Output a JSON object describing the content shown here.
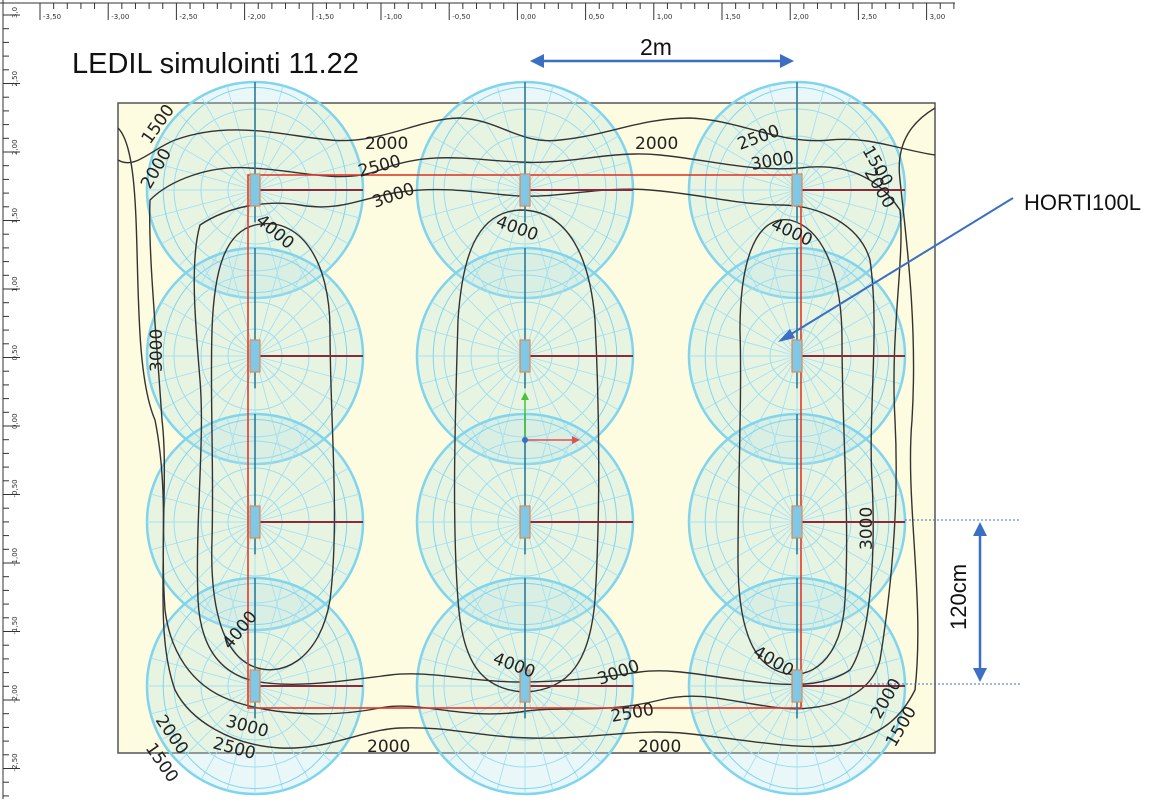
{
  "title": "LEDIL simulointi 11.22",
  "annotations": {
    "fixture_label": "HORTI100L",
    "spacing_horizontal": "2m",
    "spacing_vertical": "120cm"
  },
  "ruler": {
    "top_ticks": [
      "-3,50",
      "-3,00",
      "-2,50",
      "-2,00",
      "-1,50",
      "-1,00",
      "-0,50",
      "0,00",
      "0,50",
      "1,00",
      "1,50",
      "2,00",
      "2,50",
      "3,00"
    ],
    "left_ticks": [
      "3,0",
      "2,50",
      "2,00",
      "1,50",
      "1,00",
      "0,50",
      "0,00",
      "-0,50",
      "-1,00",
      "-1,50",
      "-2,00",
      "-2,50"
    ]
  },
  "contours": {
    "levels": [
      "1500",
      "2000",
      "2500",
      "3000",
      "4000"
    ],
    "labels": [
      {
        "text": "1500",
        "id": "c-tl-1500"
      },
      {
        "text": "2000",
        "id": "c-tl-2000"
      },
      {
        "text": "2000",
        "id": "c-top-2000a"
      },
      {
        "text": "2500",
        "id": "c-top-2500"
      },
      {
        "text": "3000",
        "id": "c-top-3000"
      },
      {
        "text": "4000",
        "id": "c-l-4000"
      },
      {
        "text": "4000",
        "id": "c-m-4000"
      },
      {
        "text": "2000",
        "id": "c-top-2000b"
      },
      {
        "text": "2500",
        "id": "c-tr-2500"
      },
      {
        "text": "3000",
        "id": "c-tr-3000"
      },
      {
        "text": "1500",
        "id": "c-tr-1500"
      },
      {
        "text": "2000",
        "id": "c-tr-2000"
      },
      {
        "text": "4000",
        "id": "c-r-4000"
      },
      {
        "text": "3000",
        "id": "c-l-3000"
      },
      {
        "text": "3000",
        "id": "c-r-3000"
      },
      {
        "text": "4000",
        "id": "c-bl-4000"
      },
      {
        "text": "4000",
        "id": "c-bm-4000"
      },
      {
        "text": "3000",
        "id": "c-bm-3000"
      },
      {
        "text": "2500",
        "id": "c-bm-2500"
      },
      {
        "text": "4000",
        "id": "c-br-4000"
      },
      {
        "text": "2000",
        "id": "c-bl-2000"
      },
      {
        "text": "3000",
        "id": "c-bl-3000"
      },
      {
        "text": "2500",
        "id": "c-bl-2500"
      },
      {
        "text": "2000",
        "id": "c-bot-2000a"
      },
      {
        "text": "2000",
        "id": "c-bot-2000b"
      },
      {
        "text": "1500",
        "id": "c-bl-1500"
      },
      {
        "text": "2000",
        "id": "c-br-2000"
      },
      {
        "text": "1500",
        "id": "c-br-1500"
      }
    ]
  },
  "layout_grid": {
    "columns": 3,
    "rows": 4
  },
  "colors": {
    "floor": "#fdfbe0",
    "polar": "#7fd4ee",
    "contour": "#333333",
    "area_outline": "#e03a2a",
    "arrow": "#3b6fc4",
    "fixture": "#e08a50"
  }
}
